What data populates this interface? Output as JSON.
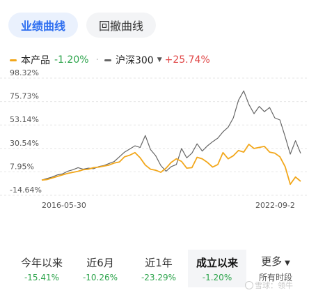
{
  "tabs": [
    {
      "label": "业绩曲线",
      "active": true
    },
    {
      "label": "回撤曲线",
      "active": false
    }
  ],
  "legend": {
    "product": {
      "name": "本产品",
      "value": "-1.20%",
      "color": "#f2a71b"
    },
    "benchmark": {
      "name": "沪深300",
      "value": "+25.74%",
      "color": "#666666"
    }
  },
  "chart_data": {
    "type": "line",
    "y_ticks": [
      "98.32%",
      "75.73%",
      "53.14%",
      "30.54%",
      "7.95%",
      "-14.64%"
    ],
    "y_values": [
      98.32,
      75.73,
      53.14,
      30.54,
      7.95,
      -14.64
    ],
    "ylim": [
      -14.64,
      98.32
    ],
    "x_ticks": [
      "2016-05-30",
      "2022-09-2"
    ],
    "x_range": [
      "2016-05-30",
      "2022-09-23"
    ],
    "grid": true,
    "series": [
      {
        "name": "本产品",
        "color": "#f2a71b",
        "x": [
          0,
          0.02,
          0.04,
          0.06,
          0.08,
          0.1,
          0.12,
          0.14,
          0.16,
          0.18,
          0.2,
          0.22,
          0.24,
          0.26,
          0.28,
          0.3,
          0.32,
          0.34,
          0.36,
          0.38,
          0.4,
          0.42,
          0.44,
          0.46,
          0.48,
          0.5,
          0.52,
          0.54,
          0.56,
          0.58,
          0.6,
          0.62,
          0.64,
          0.66,
          0.68,
          0.7,
          0.72,
          0.74,
          0.76,
          0.78,
          0.8,
          0.82,
          0.84,
          0.86,
          0.88,
          0.9,
          0.92,
          0.94,
          0.96,
          0.98,
          1.0
        ],
        "y": [
          0.0,
          0.5,
          2.0,
          3.5,
          5.0,
          6.5,
          7.5,
          8.5,
          10.0,
          10.5,
          12.0,
          12.5,
          13.5,
          14.5,
          16.5,
          17.5,
          22.5,
          24.0,
          26.5,
          21.5,
          14.5,
          10.5,
          9.5,
          7.5,
          11.5,
          17.0,
          20.5,
          18.0,
          11.5,
          12.0,
          22.0,
          20.5,
          17.0,
          12.5,
          15.0,
          26.5,
          20.5,
          23.5,
          28.5,
          27.0,
          34.5,
          30.5,
          31.5,
          32.5,
          27.0,
          26.0,
          22.5,
          13.0,
          -4.0,
          3.0,
          -1.2
        ]
      },
      {
        "name": "沪深300",
        "color": "#666666",
        "x": [
          0,
          0.02,
          0.04,
          0.06,
          0.08,
          0.1,
          0.12,
          0.14,
          0.16,
          0.18,
          0.2,
          0.22,
          0.24,
          0.26,
          0.28,
          0.3,
          0.32,
          0.34,
          0.36,
          0.38,
          0.4,
          0.42,
          0.44,
          0.46,
          0.48,
          0.5,
          0.52,
          0.54,
          0.56,
          0.58,
          0.6,
          0.62,
          0.64,
          0.66,
          0.68,
          0.7,
          0.72,
          0.74,
          0.76,
          0.78,
          0.8,
          0.82,
          0.84,
          0.86,
          0.88,
          0.9,
          0.92,
          0.94,
          0.96,
          0.98,
          1.0
        ],
        "y": [
          0.0,
          1.5,
          3.0,
          5.0,
          6.0,
          8.5,
          10.0,
          12.0,
          10.5,
          11.5,
          11.0,
          13.0,
          14.0,
          16.0,
          18.0,
          22.5,
          27.0,
          30.0,
          33.0,
          31.5,
          43.0,
          29.5,
          23.5,
          14.0,
          8.5,
          13.0,
          15.0,
          30.5,
          21.5,
          26.0,
          35.0,
          28.0,
          33.0,
          37.0,
          40.5,
          46.5,
          51.0,
          60.0,
          77.0,
          86.0,
          73.0,
          64.0,
          71.0,
          66.0,
          70.0,
          60.0,
          58.0,
          42.0,
          25.0,
          38.0,
          25.74
        ]
      }
    ]
  },
  "periods": [
    {
      "label": "今年以来",
      "value": "-15.41%",
      "active": false
    },
    {
      "label": "近6月",
      "value": "-10.26%",
      "active": false
    },
    {
      "label": "近1年",
      "value": "-23.29%",
      "active": false
    },
    {
      "label": "成立以来",
      "value": "-1.20%",
      "active": true
    },
    {
      "label": "更多",
      "value": "所有时段",
      "active": false
    }
  ],
  "watermark": "雪球：领牛"
}
